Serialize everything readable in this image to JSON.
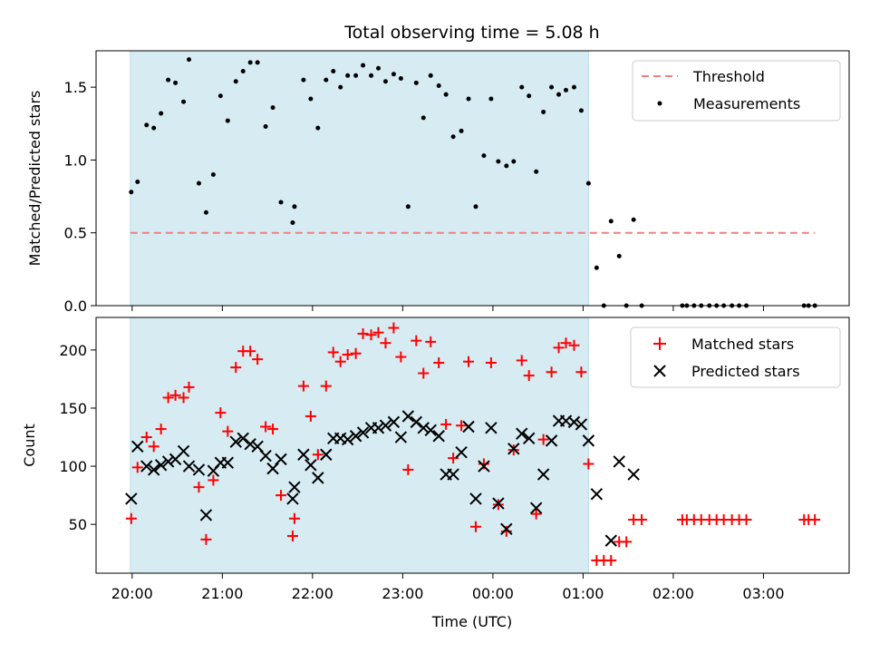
{
  "chart_data": {
    "type": "scatter",
    "title": "Total observing time = 5.08 h",
    "xlabel": "Time (UTC)",
    "x_ticks": [
      "20:00",
      "21:00",
      "22:00",
      "23:00",
      "00:00",
      "01:00",
      "02:00",
      "03:00"
    ],
    "x_range_hours": [
      19.6,
      27.95
    ],
    "shaded_span_hours": [
      19.98,
      25.06
    ],
    "panels": [
      {
        "ylabel": "Matched/Predicted stars",
        "ylim": [
          0,
          1.75
        ],
        "y_ticks": [
          0.0,
          0.5,
          1.0,
          1.5
        ],
        "y_tick_labels": [
          "0.0",
          "0.5",
          "1.0",
          "1.5"
        ],
        "legend": {
          "placement": "top-right",
          "entries": [
            "Threshold",
            "Measurements"
          ]
        },
        "threshold": {
          "name": "Threshold",
          "y": 0.5,
          "x_span_hours": [
            19.98,
            27.57
          ],
          "color": "#f08080"
        },
        "series": [
          {
            "name": "Measurements",
            "marker": "dot",
            "color": "#000000",
            "x": [
              19.99,
              20.06,
              20.16,
              20.24,
              20.32,
              20.4,
              20.48,
              20.57,
              20.63,
              20.74,
              20.82,
              20.9,
              20.98,
              21.06,
              21.15,
              21.23,
              21.31,
              21.39,
              21.48,
              21.56,
              21.65,
              21.78,
              21.8,
              21.9,
              21.98,
              22.06,
              22.15,
              22.23,
              22.31,
              22.39,
              22.48,
              22.56,
              22.65,
              22.73,
              22.81,
              22.9,
              22.98,
              23.06,
              23.15,
              23.23,
              23.31,
              23.4,
              23.48,
              23.56,
              23.65,
              23.73,
              23.81,
              23.9,
              23.98,
              24.06,
              24.15,
              24.23,
              24.32,
              24.4,
              24.48,
              24.56,
              24.65,
              24.73,
              24.81,
              24.9,
              24.98,
              25.06,
              25.15,
              25.23,
              25.31,
              25.4,
              25.48,
              25.56,
              25.65,
              26.1,
              26.15,
              26.23,
              26.31,
              26.4,
              26.48,
              26.56,
              26.65,
              26.73,
              26.81,
              27.45,
              27.5,
              27.57
            ],
            "y": [
              0.78,
              0.85,
              1.24,
              1.22,
              1.32,
              1.55,
              1.53,
              1.4,
              1.69,
              0.84,
              0.64,
              0.9,
              1.44,
              1.27,
              1.54,
              1.61,
              1.67,
              1.67,
              1.23,
              1.36,
              0.71,
              0.57,
              0.68,
              1.55,
              1.42,
              1.22,
              1.55,
              1.61,
              1.5,
              1.58,
              1.58,
              1.65,
              1.58,
              1.63,
              1.54,
              1.59,
              1.56,
              0.68,
              1.53,
              1.29,
              1.58,
              1.51,
              1.45,
              1.16,
              1.2,
              1.42,
              0.68,
              1.03,
              1.42,
              0.99,
              0.96,
              0.99,
              1.5,
              1.44,
              0.92,
              1.33,
              1.5,
              1.45,
              1.48,
              1.5,
              1.34,
              0.84,
              0.26,
              0.0,
              0.58,
              0.34,
              0.0,
              0.59,
              0.0,
              0.0,
              0.0,
              0.0,
              0.0,
              0.0,
              0.0,
              0.0,
              0.0,
              0.0,
              0.0,
              0.0,
              0.0,
              0.0
            ]
          }
        ]
      },
      {
        "ylabel": "Count",
        "ylim": [
          8,
          228
        ],
        "y_ticks": [
          50,
          100,
          150,
          200
        ],
        "y_tick_labels": [
          "50",
          "100",
          "150",
          "200"
        ],
        "legend": {
          "placement": "top-right",
          "entries": [
            "Matched stars",
            "Predicted stars"
          ]
        },
        "series": [
          {
            "name": "Matched stars",
            "marker": "plus",
            "color": "#ff0000",
            "x": [
              19.99,
              20.06,
              20.16,
              20.24,
              20.32,
              20.4,
              20.48,
              20.57,
              20.63,
              20.74,
              20.82,
              20.9,
              20.98,
              21.06,
              21.15,
              21.23,
              21.31,
              21.39,
              21.48,
              21.56,
              21.65,
              21.78,
              21.8,
              21.9,
              21.98,
              22.06,
              22.15,
              22.23,
              22.31,
              22.39,
              22.48,
              22.56,
              22.65,
              22.73,
              22.81,
              22.9,
              22.98,
              23.06,
              23.15,
              23.23,
              23.31,
              23.4,
              23.48,
              23.56,
              23.65,
              23.73,
              23.81,
              23.9,
              23.98,
              24.06,
              24.15,
              24.23,
              24.32,
              24.4,
              24.48,
              24.56,
              24.65,
              24.73,
              24.81,
              24.9,
              24.98,
              25.06,
              25.15,
              25.23,
              25.31,
              25.4,
              25.48,
              25.56,
              25.65,
              26.1,
              26.15,
              26.23,
              26.31,
              26.4,
              26.48,
              26.56,
              26.65,
              26.73,
              26.81,
              27.45,
              27.5,
              27.57
            ],
            "y": [
              55,
              99,
              125,
              117,
              132,
              159,
              161,
              159,
              168,
              82,
              37,
              88,
              146,
              130,
              185,
              199,
              199,
              192,
              134,
              132,
              75,
              40,
              55,
              169,
              143,
              110,
              169,
              198,
              190,
              196,
              197,
              214,
              213,
              215,
              206,
              219,
              194,
              97,
              208,
              180,
              207,
              189,
              136,
              107,
              135,
              190,
              48,
              102,
              189,
              67,
              44,
              114,
              191,
              178,
              59,
              123,
              181,
              202,
              206,
              204,
              181,
              102,
              19,
              19,
              19,
              35,
              35,
              54,
              54,
              54,
              54,
              54,
              54,
              54,
              54,
              54,
              54,
              54,
              54,
              54,
              54,
              54
            ]
          },
          {
            "name": "Predicted stars",
            "marker": "x",
            "color": "#000000",
            "x": [
              19.99,
              20.06,
              20.16,
              20.24,
              20.32,
              20.4,
              20.48,
              20.57,
              20.63,
              20.74,
              20.82,
              20.9,
              20.98,
              21.06,
              21.15,
              21.23,
              21.31,
              21.39,
              21.48,
              21.56,
              21.65,
              21.78,
              21.8,
              21.9,
              21.98,
              22.06,
              22.15,
              22.23,
              22.31,
              22.39,
              22.48,
              22.56,
              22.65,
              22.73,
              22.81,
              22.9,
              22.98,
              23.06,
              23.15,
              23.23,
              23.31,
              23.4,
              23.48,
              23.56,
              23.65,
              23.73,
              23.81,
              23.9,
              23.98,
              24.06,
              24.15,
              24.23,
              24.32,
              24.4,
              24.48,
              24.56,
              24.65,
              24.73,
              24.81,
              24.9,
              24.98,
              25.06,
              25.15,
              25.31,
              25.4,
              25.56
            ],
            "y": [
              72,
              117,
              100,
              97,
              101,
              104,
              106,
              113,
              100,
              97,
              58,
              96,
              103,
              103,
              121,
              124,
              119,
              117,
              109,
              98,
              106,
              72,
              82,
              110,
              101,
              90,
              110,
              124,
              124,
              123,
              126,
              129,
              133,
              133,
              135,
              138,
              125,
              143,
              138,
              133,
              131,
              126,
              93,
              93,
              112,
              134,
              72,
              100,
              133,
              68,
              46,
              115,
              128,
              124,
              64,
              93,
              122,
              139,
              139,
              138,
              136,
              122,
              76,
              36,
              104,
              93
            ]
          }
        ]
      }
    ]
  }
}
